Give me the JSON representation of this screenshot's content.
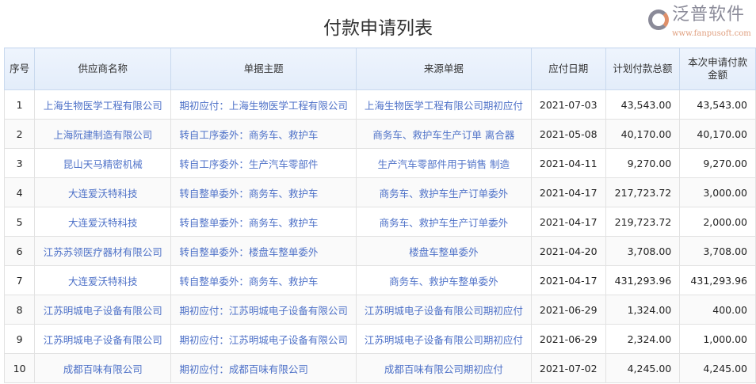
{
  "title": "付款申请列表",
  "columns": [
    "序号",
    "供应商名称",
    "单据主题",
    "来源单据",
    "应付日期",
    "计划付款总额",
    "本次申请付款金额"
  ],
  "rows": [
    [
      "1",
      "上海生物医学工程有限公司",
      "期初应付：上海生物医学工程有限公司",
      "上海生物医学工程有限公司期初应付",
      "2021-07-03",
      "43,543.00",
      "43,543.00"
    ],
    [
      "2",
      "上海阮建制造有限公司",
      "转自工序委外：商务车、救护车",
      "商务车、救护车生产订单 离合器",
      "2021-05-08",
      "40,170.00",
      "40,170.00"
    ],
    [
      "3",
      "昆山天马精密机械",
      "转自工序委外：生产汽车零部件",
      "生产汽车零部件用于销售 制造",
      "2021-04-11",
      "9,270.00",
      "9,270.00"
    ],
    [
      "4",
      "大连爱沃特科技",
      "转自整单委外：商务车、救护车",
      "商务车、救护车生产订单委外",
      "2021-04-17",
      "217,723.72",
      "3,000.00"
    ],
    [
      "5",
      "大连爱沃特科技",
      "转自整单委外：商务车、救护车",
      "商务车、救护车生产订单委外",
      "2021-04-17",
      "219,723.72",
      "2,000.00"
    ],
    [
      "6",
      "江苏苏领医疗器材有限公司",
      "转自整单委外：楼盘车整单委外",
      "楼盘车整单委外",
      "2021-04-20",
      "3,708.00",
      "3,708.00"
    ],
    [
      "7",
      "大连爱沃特科技",
      "转自整单委外：商务车、救护车",
      "商务车、救护车整单委外",
      "2021-04-17",
      "431,293.96",
      "431,293.96"
    ],
    [
      "8",
      "江苏明城电子设备有限公司",
      "期初应付：江苏明城电子设备有限公司",
      "江苏明城电子设备有限公司期初应付",
      "2021-06-29",
      "1,324.00",
      "400.00"
    ],
    [
      "9",
      "江苏明城电子设备有限公司",
      "期初应付：江苏明城电子设备有限公司",
      "江苏明城电子设备有限公司期初应付",
      "2021-06-29",
      "2,324.00",
      "1,000.00"
    ],
    [
      "10",
      "成都百味有限公司",
      "期初应付：成都百味有限公司",
      "成都百味有限公司期初应付",
      "2021-07-02",
      "4,245.00",
      "4,245.00"
    ]
  ],
  "watermark": {
    "name": "泛普软件",
    "url": "www.fanpusoft.com"
  },
  "colors": {
    "link": "#4f72c8",
    "header_bg": "#e8f0fc"
  }
}
